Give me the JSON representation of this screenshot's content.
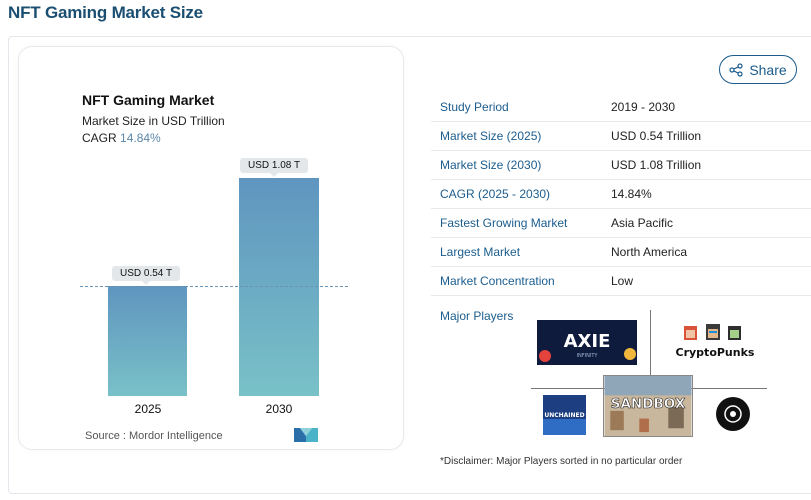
{
  "page": {
    "title": "NFT Gaming Market Size"
  },
  "share": {
    "label": "Share",
    "icon": "share-icon"
  },
  "chart": {
    "title": "NFT Gaming Market",
    "subtitle": "Market Size in USD Trillion",
    "cagr_label": "CAGR",
    "cagr_value": "14.84%",
    "source": "Source :  Mordor Intelligence",
    "colors": {
      "bar_top": "#5f95bf",
      "bar_bottom": "#79c1c8",
      "accent": "#5a87a8"
    }
  },
  "chart_data": {
    "type": "bar",
    "categories": [
      "2025",
      "2030"
    ],
    "values": [
      0.54,
      1.08
    ],
    "data_labels": [
      "USD 0.54 T",
      "USD 1.08 T"
    ],
    "title": "NFT Gaming Market",
    "ylabel": "Market Size in USD Trillion",
    "reference_line": 0.54,
    "grid": false
  },
  "info": {
    "rows": [
      {
        "key": "Study Period",
        "value": "2019 - 2030"
      },
      {
        "key": "Market Size (2025)",
        "value": "USD 0.54 Trillion"
      },
      {
        "key": "Market Size (2030)",
        "value": "USD 1.08 Trillion"
      },
      {
        "key": "CAGR (2025 - 2030)",
        "value": "14.84%"
      },
      {
        "key": "Fastest Growing Market",
        "value": "Asia Pacific"
      },
      {
        "key": "Largest Market",
        "value": "North America"
      },
      {
        "key": "Market Concentration",
        "value": "Low"
      }
    ]
  },
  "players": {
    "label": "Major Players",
    "logos": {
      "axie": "AXIE INFINITY",
      "punks": "CryptoPunks",
      "unchained": "UNCHAINED",
      "sandbox": "THE SANDBOX"
    },
    "disclaimer": "*Disclaimer: Major Players sorted in no particular order"
  }
}
